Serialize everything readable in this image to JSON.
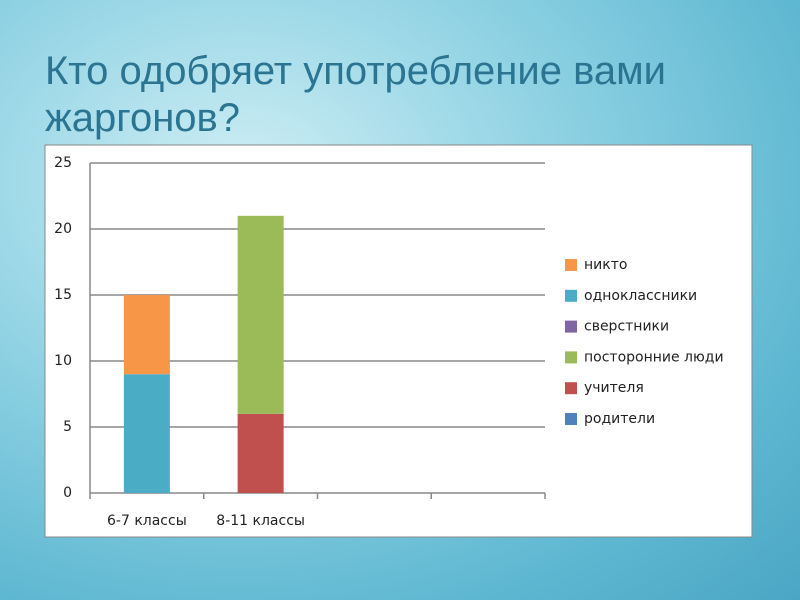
{
  "chart_data": {
    "type": "stacked-bar",
    "title": "Кто одобряет употребление вами жаргонов?",
    "categories": [
      "6-7 классы",
      "8-11 классы",
      null,
      null
    ],
    "series": [
      {
        "name": "родители",
        "color": "#4f81bd",
        "values": [
          0,
          0,
          null,
          null
        ]
      },
      {
        "name": "учителя",
        "color": "#c0504d",
        "values": [
          0,
          6,
          null,
          null
        ]
      },
      {
        "name": "посторонние люди",
        "color": "#9bbb59",
        "values": [
          0,
          15,
          null,
          null
        ]
      },
      {
        "name": "сверстники",
        "color": "#8064a2",
        "values": [
          0,
          0,
          null,
          null
        ]
      },
      {
        "name": "одноклассники",
        "color": "#4bacc6",
        "values": [
          9,
          0,
          null,
          null
        ]
      },
      {
        "name": "никто",
        "color": "#f79646",
        "values": [
          6,
          0,
          null,
          null
        ]
      }
    ],
    "ylim": [
      0,
      25
    ],
    "yticks": [
      0,
      5,
      10,
      15,
      20,
      25
    ],
    "grid": true,
    "legend": "right"
  }
}
